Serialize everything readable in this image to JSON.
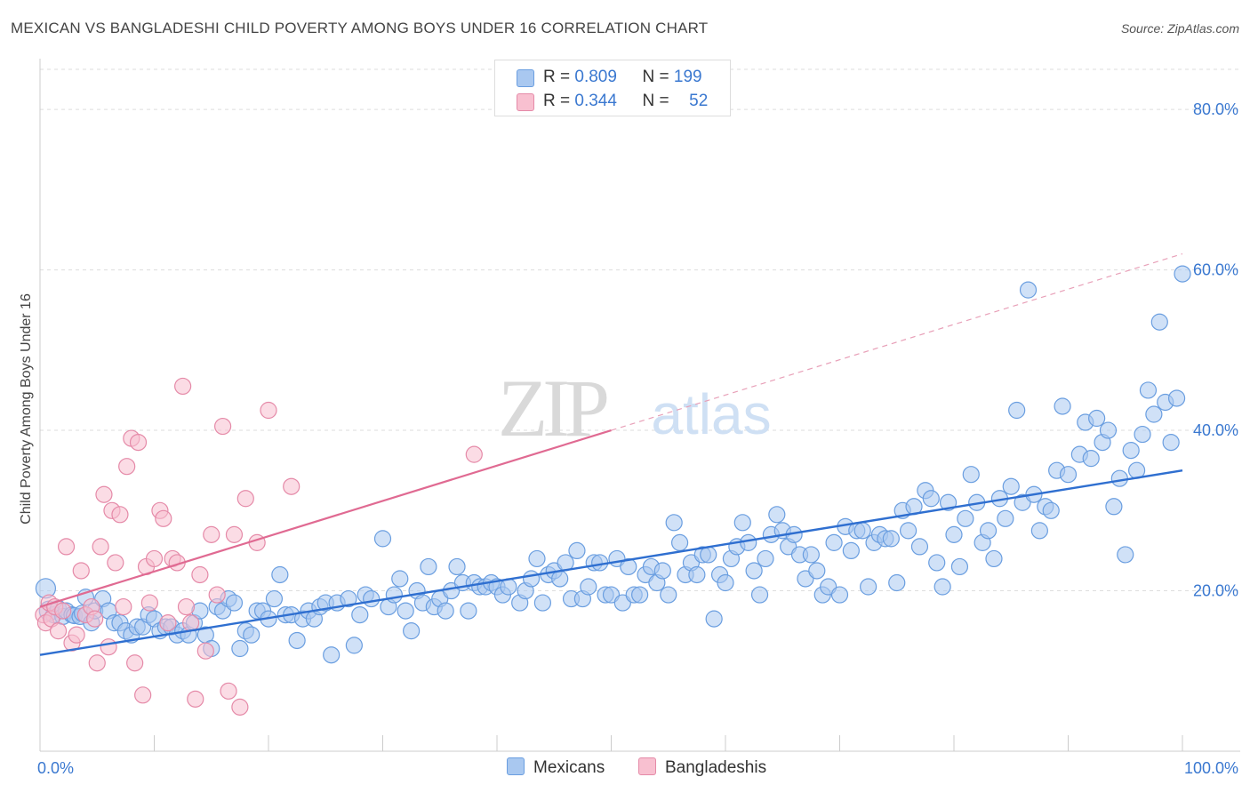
{
  "title": "MEXICAN VS BANGLADESHI CHILD POVERTY AMONG BOYS UNDER 16 CORRELATION CHART",
  "source": "Source: ZipAtlas.com",
  "watermark": {
    "zip": "ZIP",
    "atlas": "atlas"
  },
  "legend": {
    "rows": [
      {
        "r_label": "R =",
        "r_value": "0.809",
        "n_label": "N =",
        "n_value": "199",
        "color": "#a9c8f0",
        "border": "#6a9ee0"
      },
      {
        "r_label": "R =",
        "r_value": "0.344",
        "n_label": "N =",
        "n_value": "52",
        "color": "#f8c0d0",
        "border": "#e58aa8"
      }
    ]
  },
  "bottom_legend": {
    "mexicans": "Mexicans",
    "bangladeshis": "Bangladeshis"
  },
  "chart_data": {
    "type": "scatter",
    "title": "MEXICAN VS BANGLADESHI CHILD POVERTY AMONG BOYS UNDER 16 CORRELATION CHART",
    "xlabel": "",
    "ylabel": "Child Poverty Among Boys Under 16",
    "xlim": [
      0,
      100
    ],
    "ylim": [
      0,
      85
    ],
    "x_tick_labels": [
      "0.0%",
      "100.0%"
    ],
    "y_ticks": [
      20,
      40,
      60,
      80
    ],
    "y_tick_labels": [
      "20.0%",
      "40.0%",
      "60.0%",
      "80.0%"
    ],
    "grid": true,
    "legend_position": "top-center",
    "series": [
      {
        "name": "Mexicans",
        "color": "#6a9ee0",
        "fill": "#a9c8f0",
        "r": 0.809,
        "n": 199,
        "trend": {
          "x": [
            0,
            100
          ],
          "y": [
            12.0,
            35.0
          ]
        },
        "points": [
          [
            0.5,
            20.3
          ],
          [
            0.8,
            17.5
          ],
          [
            1.2,
            17.0
          ],
          [
            1.6,
            17.8
          ],
          [
            2.0,
            16.8
          ],
          [
            2.3,
            17.5
          ],
          [
            2.8,
            17.0
          ],
          [
            3.0,
            16.9
          ],
          [
            3.5,
            16.8
          ],
          [
            3.7,
            17.2
          ],
          [
            4.0,
            19.2
          ],
          [
            4.5,
            16.0
          ],
          [
            4.8,
            17.5
          ],
          [
            5.5,
            19.0
          ],
          [
            6.0,
            17.5
          ],
          [
            6.5,
            16.0
          ],
          [
            7.0,
            16.0
          ],
          [
            7.5,
            15.0
          ],
          [
            8.0,
            14.5
          ],
          [
            8.5,
            15.5
          ],
          [
            9.0,
            15.5
          ],
          [
            9.5,
            17.0
          ],
          [
            10.0,
            16.5
          ],
          [
            10.5,
            15.0
          ],
          [
            11.0,
            15.5
          ],
          [
            11.5,
            15.5
          ],
          [
            12.0,
            14.5
          ],
          [
            12.5,
            15.0
          ],
          [
            13.0,
            14.5
          ],
          [
            13.5,
            16.0
          ],
          [
            14.0,
            17.5
          ],
          [
            14.5,
            14.5
          ],
          [
            15.0,
            12.8
          ],
          [
            15.5,
            18.0
          ],
          [
            16.0,
            17.5
          ],
          [
            16.5,
            19.0
          ],
          [
            17.0,
            18.5
          ],
          [
            17.5,
            12.8
          ],
          [
            18.0,
            15.0
          ],
          [
            18.5,
            14.5
          ],
          [
            19.0,
            17.5
          ],
          [
            19.5,
            17.5
          ],
          [
            20.0,
            16.5
          ],
          [
            20.5,
            19.0
          ],
          [
            21.0,
            22.0
          ],
          [
            21.5,
            17.0
          ],
          [
            22.0,
            17.0
          ],
          [
            22.5,
            13.8
          ],
          [
            23.0,
            16.5
          ],
          [
            23.5,
            17.5
          ],
          [
            24.0,
            16.5
          ],
          [
            24.5,
            18.0
          ],
          [
            25.0,
            18.5
          ],
          [
            25.5,
            12.0
          ],
          [
            26.0,
            18.5
          ],
          [
            27.0,
            19.0
          ],
          [
            27.5,
            13.2
          ],
          [
            28.0,
            17.0
          ],
          [
            28.5,
            19.5
          ],
          [
            29.0,
            19.0
          ],
          [
            30.0,
            26.5
          ],
          [
            30.5,
            18.0
          ],
          [
            31.0,
            19.5
          ],
          [
            31.5,
            21.5
          ],
          [
            32.0,
            17.5
          ],
          [
            32.5,
            15.0
          ],
          [
            33.0,
            20.0
          ],
          [
            33.5,
            18.5
          ],
          [
            34.0,
            23.0
          ],
          [
            34.5,
            18.0
          ],
          [
            35.0,
            19.0
          ],
          [
            35.5,
            17.5
          ],
          [
            36.0,
            20.0
          ],
          [
            36.5,
            23.0
          ],
          [
            37.0,
            21.0
          ],
          [
            37.5,
            17.5
          ],
          [
            38.0,
            21.0
          ],
          [
            38.5,
            20.5
          ],
          [
            39.0,
            20.5
          ],
          [
            39.5,
            21.0
          ],
          [
            40.0,
            20.5
          ],
          [
            40.5,
            19.5
          ],
          [
            41.0,
            20.5
          ],
          [
            42.0,
            18.5
          ],
          [
            42.5,
            20.0
          ],
          [
            43.0,
            21.5
          ],
          [
            43.5,
            24.0
          ],
          [
            44.0,
            18.5
          ],
          [
            44.5,
            22.0
          ],
          [
            45.0,
            22.5
          ],
          [
            45.5,
            21.5
          ],
          [
            46.0,
            23.5
          ],
          [
            46.5,
            19.0
          ],
          [
            47.0,
            25.0
          ],
          [
            47.5,
            19.0
          ],
          [
            48.0,
            20.5
          ],
          [
            48.5,
            23.5
          ],
          [
            49.0,
            23.5
          ],
          [
            49.5,
            19.5
          ],
          [
            50.0,
            19.5
          ],
          [
            50.5,
            24.0
          ],
          [
            51.0,
            18.5
          ],
          [
            51.5,
            23.0
          ],
          [
            52.0,
            19.5
          ],
          [
            52.5,
            19.5
          ],
          [
            53.0,
            22.0
          ],
          [
            53.5,
            23.0
          ],
          [
            54.0,
            21.0
          ],
          [
            54.5,
            22.5
          ],
          [
            55.0,
            19.5
          ],
          [
            55.5,
            28.5
          ],
          [
            56.0,
            26.0
          ],
          [
            56.5,
            22.0
          ],
          [
            57.0,
            23.5
          ],
          [
            57.5,
            22.0
          ],
          [
            58.0,
            24.5
          ],
          [
            58.5,
            24.5
          ],
          [
            59.0,
            16.5
          ],
          [
            59.5,
            22.0
          ],
          [
            60.0,
            21.0
          ],
          [
            60.5,
            24.0
          ],
          [
            61.0,
            25.5
          ],
          [
            61.5,
            28.5
          ],
          [
            62.0,
            26.0
          ],
          [
            62.5,
            22.5
          ],
          [
            63.0,
            19.5
          ],
          [
            63.5,
            24.0
          ],
          [
            64.0,
            27.0
          ],
          [
            64.5,
            29.5
          ],
          [
            65.0,
            27.5
          ],
          [
            65.5,
            25.5
          ],
          [
            66.0,
            27.0
          ],
          [
            66.5,
            24.5
          ],
          [
            67.0,
            21.5
          ],
          [
            67.5,
            24.5
          ],
          [
            68.0,
            22.5
          ],
          [
            68.5,
            19.5
          ],
          [
            69.0,
            20.5
          ],
          [
            69.5,
            26.0
          ],
          [
            70.0,
            19.5
          ],
          [
            70.5,
            28.0
          ],
          [
            71.0,
            25.0
          ],
          [
            71.5,
            27.5
          ],
          [
            72.0,
            27.5
          ],
          [
            72.5,
            20.5
          ],
          [
            73.0,
            26.0
          ],
          [
            73.5,
            27.0
          ],
          [
            74.0,
            26.5
          ],
          [
            74.5,
            26.5
          ],
          [
            75.0,
            21.0
          ],
          [
            75.5,
            30.0
          ],
          [
            76.0,
            27.5
          ],
          [
            76.5,
            30.5
          ],
          [
            77.0,
            25.5
          ],
          [
            77.5,
            32.5
          ],
          [
            78.0,
            31.5
          ],
          [
            78.5,
            23.5
          ],
          [
            79.0,
            20.5
          ],
          [
            79.5,
            31.0
          ],
          [
            80.0,
            27.0
          ],
          [
            80.5,
            23.0
          ],
          [
            81.0,
            29.0
          ],
          [
            81.5,
            34.5
          ],
          [
            82.0,
            31.0
          ],
          [
            82.5,
            26.0
          ],
          [
            83.0,
            27.5
          ],
          [
            83.5,
            24.0
          ],
          [
            84.0,
            31.5
          ],
          [
            84.5,
            29.0
          ],
          [
            85.0,
            33.0
          ],
          [
            85.5,
            42.5
          ],
          [
            86.0,
            31.0
          ],
          [
            86.5,
            57.5
          ],
          [
            87.0,
            32.0
          ],
          [
            87.5,
            27.5
          ],
          [
            88.0,
            30.5
          ],
          [
            88.5,
            30.0
          ],
          [
            89.0,
            35.0
          ],
          [
            89.5,
            43.0
          ],
          [
            90.0,
            34.5
          ],
          [
            91.0,
            37.0
          ],
          [
            91.5,
            41.0
          ],
          [
            92.0,
            36.5
          ],
          [
            92.5,
            41.5
          ],
          [
            93.0,
            38.5
          ],
          [
            93.5,
            40.0
          ],
          [
            94.0,
            30.5
          ],
          [
            94.5,
            34.0
          ],
          [
            95.0,
            24.5
          ],
          [
            95.5,
            37.5
          ],
          [
            96.0,
            35.0
          ],
          [
            96.5,
            39.5
          ],
          [
            97.0,
            45.0
          ],
          [
            97.5,
            42.0
          ],
          [
            98.0,
            53.5
          ],
          [
            98.5,
            43.5
          ],
          [
            99.0,
            38.5
          ],
          [
            99.5,
            44.0
          ],
          [
            100.0,
            59.5
          ]
        ]
      },
      {
        "name": "Bangladeshis",
        "color": "#e58aa8",
        "fill": "#f8c0d0",
        "r": 0.344,
        "n": 52,
        "trend": {
          "x": [
            0,
            50
          ],
          "y": [
            18.0,
            40.0
          ]
        },
        "trend_extension": {
          "x": [
            50,
            100
          ],
          "y": [
            40.0,
            62.0
          ]
        },
        "points": [
          [
            0.3,
            17.0
          ],
          [
            0.5,
            16.0
          ],
          [
            0.8,
            18.5
          ],
          [
            1.0,
            16.5
          ],
          [
            1.3,
            18.0
          ],
          [
            1.6,
            15.0
          ],
          [
            2.0,
            17.5
          ],
          [
            2.3,
            25.5
          ],
          [
            2.8,
            13.5
          ],
          [
            3.2,
            14.5
          ],
          [
            3.6,
            22.5
          ],
          [
            4.0,
            17.0
          ],
          [
            4.5,
            18.0
          ],
          [
            4.8,
            16.5
          ],
          [
            5.0,
            11.0
          ],
          [
            5.3,
            25.5
          ],
          [
            5.6,
            32.0
          ],
          [
            6.0,
            13.0
          ],
          [
            6.3,
            30.0
          ],
          [
            6.6,
            23.5
          ],
          [
            7.0,
            29.5
          ],
          [
            7.3,
            18.0
          ],
          [
            7.6,
            35.5
          ],
          [
            8.0,
            39.0
          ],
          [
            8.3,
            11.0
          ],
          [
            8.6,
            38.5
          ],
          [
            9.0,
            7.0
          ],
          [
            9.3,
            23.0
          ],
          [
            9.6,
            18.5
          ],
          [
            10.0,
            24.0
          ],
          [
            10.5,
            30.0
          ],
          [
            10.8,
            29.0
          ],
          [
            11.2,
            16.0
          ],
          [
            11.6,
            24.0
          ],
          [
            12.0,
            23.5
          ],
          [
            12.5,
            45.5
          ],
          [
            12.8,
            18.0
          ],
          [
            13.2,
            16.0
          ],
          [
            13.6,
            6.5
          ],
          [
            14.0,
            22.0
          ],
          [
            14.5,
            12.5
          ],
          [
            15.0,
            27.0
          ],
          [
            15.5,
            19.5
          ],
          [
            16.0,
            40.5
          ],
          [
            16.5,
            7.5
          ],
          [
            17.0,
            27.0
          ],
          [
            17.5,
            5.5
          ],
          [
            18.0,
            31.5
          ],
          [
            19.0,
            26.0
          ],
          [
            20.0,
            42.5
          ],
          [
            22.0,
            33.0
          ],
          [
            38.0,
            37.0
          ]
        ]
      }
    ]
  }
}
